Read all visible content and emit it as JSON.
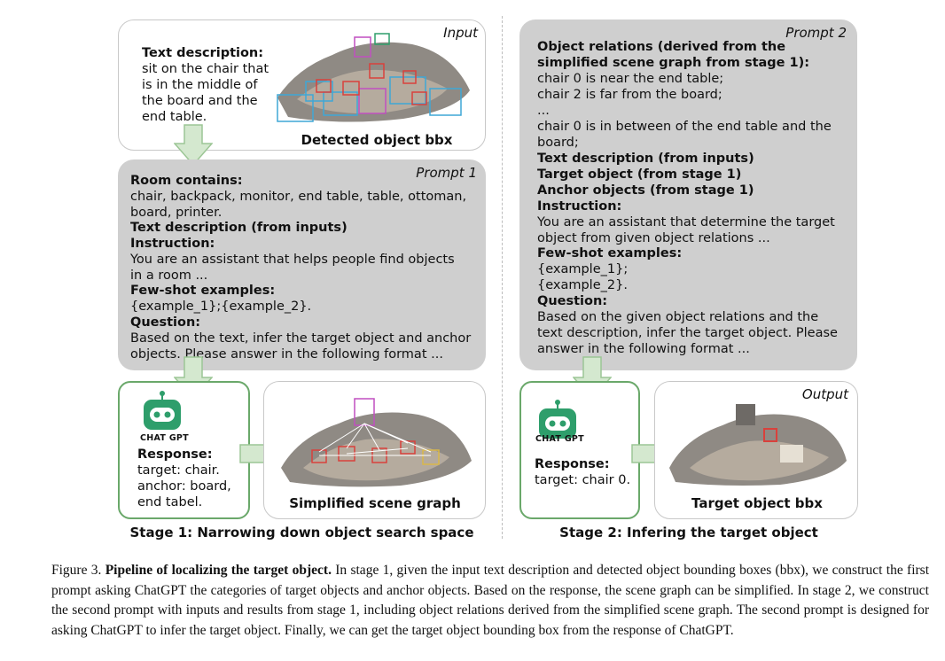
{
  "stage1": {
    "input_box": {
      "corner": "Input",
      "text_heading": "Text description:",
      "text_body": "sit on the chair that\nis in the middle of\nthe board and the\nend table.",
      "image_label": "Detected object bbx"
    },
    "prompt1": {
      "corner": "Prompt 1",
      "room_heading": "Room contains:",
      "room_body": "chair, backpack, monitor, end table, table, ottoman,\nboard, printer.",
      "text_desc_heading": "Text description (from inputs)",
      "instruction_heading": "Instruction:",
      "instruction_body": "You are an assistant that helps people find objects\nin a room ...",
      "fewshot_heading": "Few-shot examples:",
      "fewshot_body": "{example_1};{example_2}.",
      "question_heading": "Question:",
      "question_body": "Based on the text, infer the target object and anchor\nobjects. Please answer in the following format ..."
    },
    "chatgpt": {
      "logo_label": "CHAT GPT",
      "response_heading": "Response:",
      "response_body": "target: chair.\nanchor: board,\nend tabel."
    },
    "scene_graph_label": "Simplified scene graph",
    "stage_label": "Stage 1: Narrowing down object search space"
  },
  "stage2": {
    "prompt2": {
      "corner": "Prompt 2",
      "relations_heading": "Object relations (derived from the\nsimplified scene graph from stage 1):",
      "relations_body": "chair 0 is near the end table;\nchair 2 is far from the board;\n...\nchair 0 is in between of the end table and the\nboard;",
      "text_desc_heading": "Text description (from inputs)",
      "target_heading": "Target object (from stage 1)",
      "anchor_heading": "Anchor objects (from stage 1)",
      "instruction_heading": "Instruction:",
      "instruction_body": "You are an assistant that determine the target\nobject from given object relations ...",
      "fewshot_heading": "Few-shot examples:",
      "fewshot_body": "{example_1};\n{example_2}.",
      "question_heading": "Question:",
      "question_body": "Based on the given object relations and the\ntext description, infer the target object. Please\nanswer in the following format ..."
    },
    "chatgpt": {
      "logo_label": "CHAT GPT",
      "response_heading": "Response:",
      "response_body": "target: chair 0."
    },
    "output_box": {
      "corner": "Output",
      "image_label": "Target object bbx"
    },
    "stage_label": "Stage 2: Infering the target object"
  },
  "caption": {
    "prefix": "Figure 3. ",
    "title": "Pipeline of localizing the target object.",
    "body": " In stage 1, given the input text description and detected object bounding boxes (bbx), we construct the first prompt asking ChatGPT the categories of target objects and anchor objects. Based on the response, the scene graph can be simplified. In stage 2, we construct the second prompt with inputs and results from stage 1, including object relations derived from the simplified scene graph. The second prompt is designed for asking ChatGPT to infer the target object. Finally, we can get the target object bounding box from the response of ChatGPT."
  },
  "colors": {
    "arrow_fill": "#d4e8cf",
    "arrow_stroke": "#9cc695",
    "chatgpt_green": "#2e9e6b",
    "prompt_gray": "#cfcfcf",
    "bbox_red": "#d9413c",
    "bbox_cyan": "#3fa7d6",
    "bbox_magenta": "#c04fc0"
  }
}
